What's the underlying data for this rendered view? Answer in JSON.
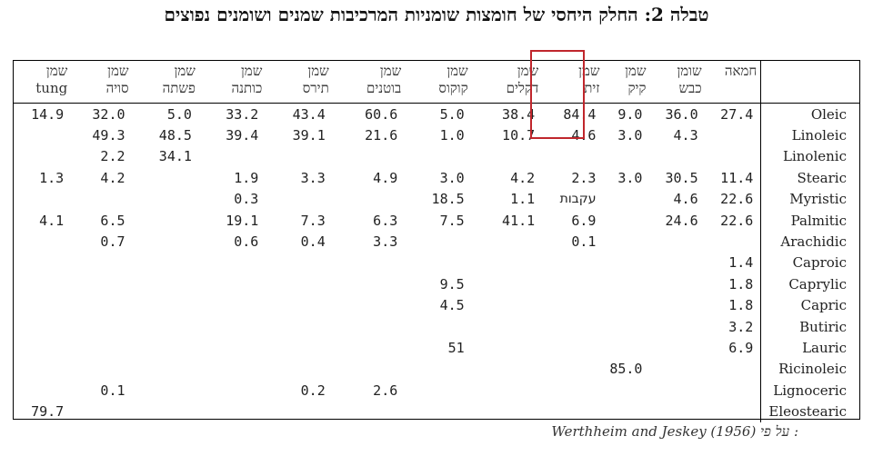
{
  "title": "טבלה 2: החלק היחסי של חומצות שומניות המרכיבות שמנים  ושומנים נפוצים",
  "columns": [
    {
      "line1": "שמן",
      "line2": "tung"
    },
    {
      "line1": "שמן",
      "line2": "סויה"
    },
    {
      "line1": "שמן",
      "line2": "פשתה"
    },
    {
      "line1": "שמן",
      "line2": "כותנה"
    },
    {
      "line1": "שמן",
      "line2": "תירס"
    },
    {
      "line1": "שמן",
      "line2": "בוטנים"
    },
    {
      "line1": "שמן",
      "line2": "קוקוס"
    },
    {
      "line1": "שמן",
      "line2": "דקלים"
    },
    {
      "line1": "שמן",
      "line2": "זית"
    },
    {
      "line1": "שמן",
      "line2": "קיק"
    },
    {
      "line1": "שומן",
      "line2": "כבש"
    },
    {
      "line1": "חמאה",
      "line2": ""
    }
  ],
  "rows": [
    {
      "acid": "Oleic",
      "values": [
        "14.9",
        "32.0",
        "5.0",
        "33.2",
        "43.4",
        "60.6",
        "5.0",
        "38.4",
        "84.4",
        "9.0",
        "36.0",
        "27.4"
      ]
    },
    {
      "acid": "Linoleic",
      "values": [
        "",
        "49.3",
        "48.5",
        "39.4",
        "39.1",
        "21.6",
        "1.0",
        "10.7",
        "4.6",
        "3.0",
        "4.3",
        ""
      ]
    },
    {
      "acid": "Linolenic",
      "values": [
        "",
        "2.2",
        "34.1",
        "",
        "",
        "",
        "",
        "",
        "",
        "",
        "",
        ""
      ]
    },
    {
      "acid": "Stearic",
      "values": [
        "1.3",
        "4.2",
        "",
        "1.9",
        "3.3",
        "4.9",
        "3.0",
        "4.2",
        "2.3",
        "3.0",
        "30.5",
        "11.4"
      ]
    },
    {
      "acid": "Myristic",
      "values": [
        "",
        "",
        "",
        "0.3",
        "",
        "",
        "18.5",
        "1.1",
        "עקבות",
        "",
        "4.6",
        "22.6"
      ]
    },
    {
      "acid": "Palmitic",
      "values": [
        "4.1",
        "6.5",
        "",
        "19.1",
        "7.3",
        "6.3",
        "7.5",
        "41.1",
        "6.9",
        "",
        "24.6",
        "22.6"
      ]
    },
    {
      "acid": "Arachidic",
      "values": [
        "",
        "0.7",
        "",
        "0.6",
        "0.4",
        "3.3",
        "",
        "",
        "0.1",
        "",
        "",
        ""
      ]
    },
    {
      "acid": "Caproic",
      "values": [
        "",
        "",
        "",
        "",
        "",
        "",
        "",
        "",
        "",
        "",
        "",
        "1.4"
      ]
    },
    {
      "acid": "Caprylic",
      "values": [
        "",
        "",
        "",
        "",
        "",
        "",
        "9.5",
        "",
        "",
        "",
        "",
        "1.8"
      ]
    },
    {
      "acid": "Capric",
      "values": [
        "",
        "",
        "",
        "",
        "",
        "",
        "4.5",
        "",
        "",
        "",
        "",
        "1.8"
      ]
    },
    {
      "acid": "Butiric",
      "values": [
        "",
        "",
        "",
        "",
        "",
        "",
        "",
        "",
        "",
        "",
        "",
        "3.2"
      ]
    },
    {
      "acid": "Lauric",
      "values": [
        "",
        "",
        "",
        "",
        "",
        "",
        "51",
        "",
        "",
        "",
        "",
        "6.9"
      ]
    },
    {
      "acid": "Ricinoleic",
      "values": [
        "",
        "",
        "",
        "",
        "",
        "",
        "",
        "",
        "",
        "85.0",
        "",
        ""
      ]
    },
    {
      "acid": "Lignoceric",
      "values": [
        "",
        "0.1",
        "",
        "",
        "0.2",
        "2.6",
        "",
        "",
        "",
        "",
        "",
        ""
      ]
    },
    {
      "acid": "Eleostearic",
      "values": [
        "79.7",
        "",
        "",
        "",
        "",
        "",
        "",
        "",
        "",
        "",
        "",
        ""
      ]
    }
  ],
  "highlight_color": "#c0262c",
  "source": {
    "prefix": "על פי :",
    "text": "Werthheim and Jeskey (1956)"
  }
}
